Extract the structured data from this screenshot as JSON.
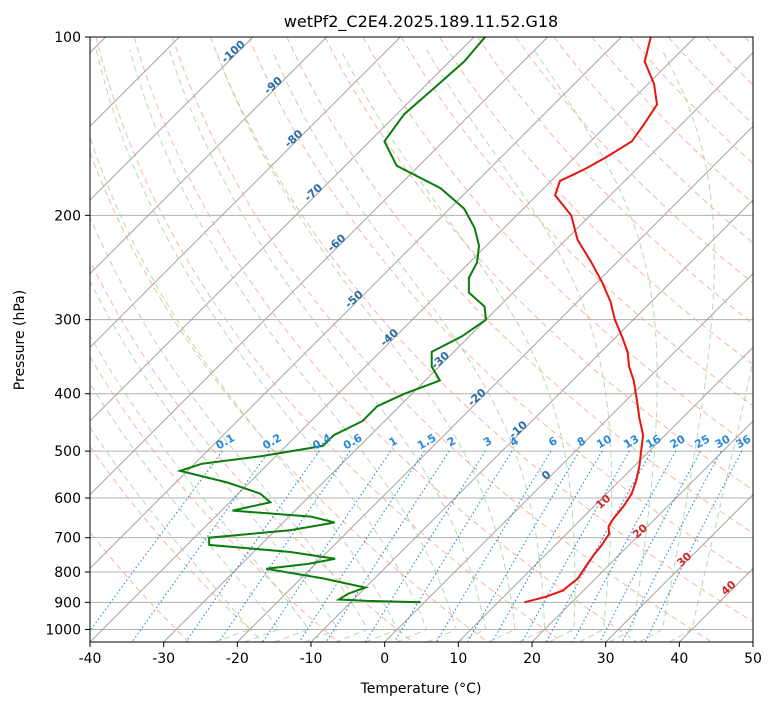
{
  "chart_data": {
    "type": "line",
    "title": "wetPf2_C2E4.2025.189.11.52.G18",
    "xlabel": "Temperature (°C)",
    "ylabel": "Pressure (hPa)",
    "xlim": [
      -40,
      50
    ],
    "ylim": [
      1050,
      100
    ],
    "y_scale": "log",
    "x_ticks": [
      "-40",
      "-30",
      "-20",
      "-10",
      "0",
      "10",
      "20",
      "30",
      "40",
      "50"
    ],
    "y_ticks": [
      "100",
      "200",
      "300",
      "400",
      "500",
      "600",
      "700",
      "800",
      "900",
      "1000"
    ],
    "grid": true,
    "colors": {
      "temperature": "#e8140f",
      "dewpoint": "#0a7d0a",
      "isotherm": "#999999",
      "dry_adiabat": "#f4a58a",
      "moist_adiabat": "#9ccc9c",
      "mixing_ratio": "#2a88d8",
      "isotherm_label": "#2a6ca8",
      "dry_adiabat_label": "#d62728"
    },
    "isotherm_labels": [
      "-100",
      "-90",
      "-80",
      "-70",
      "-60",
      "-50",
      "-40",
      "-30",
      "-20",
      "-10",
      "0"
    ],
    "mixing_ratio_labels": [
      "0.1",
      "0.2",
      "0.4",
      "0.6",
      "1",
      "1.5",
      "2",
      "3",
      "4",
      "6",
      "8",
      "10",
      "13",
      "16",
      "20",
      "25",
      "30",
      "36"
    ],
    "dry_adiabat_labels": [
      "10",
      "20",
      "30",
      "40"
    ],
    "series": [
      {
        "name": "Temperature",
        "points": [
          [
            13.6,
            900
          ],
          [
            15.8,
            880
          ],
          [
            17.2,
            860
          ],
          [
            17.6,
            820
          ],
          [
            17.0,
            780
          ],
          [
            16.6,
            750
          ],
          [
            16.3,
            720
          ],
          [
            15.8,
            690
          ],
          [
            14.7,
            670
          ],
          [
            14.3,
            650
          ],
          [
            14.0,
            620
          ],
          [
            13.4,
            590
          ],
          [
            12.2,
            560
          ],
          [
            10.7,
            530
          ],
          [
            8.9,
            500
          ],
          [
            7.0,
            470
          ],
          [
            4.2,
            440
          ],
          [
            1.4,
            410
          ],
          [
            -1.7,
            380
          ],
          [
            -4.2,
            360
          ],
          [
            -6.4,
            340
          ],
          [
            -9.3,
            320
          ],
          [
            -12.5,
            300
          ],
          [
            -15.5,
            280
          ],
          [
            -19.2,
            260
          ],
          [
            -23.5,
            240
          ],
          [
            -28.4,
            220
          ],
          [
            -32.6,
            200
          ],
          [
            -37.5,
            185
          ],
          [
            -38.8,
            175
          ],
          [
            -37.0,
            167
          ],
          [
            -35.8,
            160
          ],
          [
            -34.4,
            150
          ],
          [
            -35.1,
            140
          ],
          [
            -36.0,
            130
          ],
          [
            -39.2,
            120
          ],
          [
            -43.5,
            110
          ],
          [
            -46.0,
            100
          ]
        ]
      },
      {
        "name": "Dewpoint",
        "points": [
          [
            -0.5,
            900
          ],
          [
            -8.0,
            895
          ],
          [
            -12.0,
            890
          ],
          [
            -11.5,
            870
          ],
          [
            -10.0,
            850
          ],
          [
            -17.0,
            820
          ],
          [
            -26.0,
            790
          ],
          [
            -21.0,
            775
          ],
          [
            -18.0,
            760
          ],
          [
            -25.0,
            740
          ],
          [
            -37.0,
            720
          ],
          [
            -38.0,
            700
          ],
          [
            -28.0,
            680
          ],
          [
            -23.0,
            660
          ],
          [
            -27.0,
            645
          ],
          [
            -38.5,
            630
          ],
          [
            -34.5,
            610
          ],
          [
            -37.0,
            590
          ],
          [
            -43.0,
            565
          ],
          [
            -51.0,
            540
          ],
          [
            -49.0,
            525
          ],
          [
            -42.0,
            510
          ],
          [
            -35.0,
            490
          ],
          [
            -35.0,
            470
          ],
          [
            -33.0,
            445
          ],
          [
            -33.0,
            420
          ],
          [
            -31.0,
            400
          ],
          [
            -28.0,
            380
          ],
          [
            -31.0,
            360
          ],
          [
            -33.0,
            340
          ],
          [
            -31.0,
            320
          ],
          [
            -30.0,
            300
          ],
          [
            -32.0,
            285
          ],
          [
            -36.0,
            270
          ],
          [
            -38.0,
            255
          ],
          [
            -39.0,
            240
          ],
          [
            -41.0,
            225
          ],
          [
            -44.0,
            210
          ],
          [
            -48.0,
            195
          ],
          [
            -54.0,
            180
          ],
          [
            -63.0,
            165
          ],
          [
            -68.0,
            150
          ],
          [
            -69.0,
            135
          ],
          [
            -68.5,
            122
          ],
          [
            -68.0,
            110
          ],
          [
            -68.5,
            100
          ]
        ]
      }
    ]
  }
}
